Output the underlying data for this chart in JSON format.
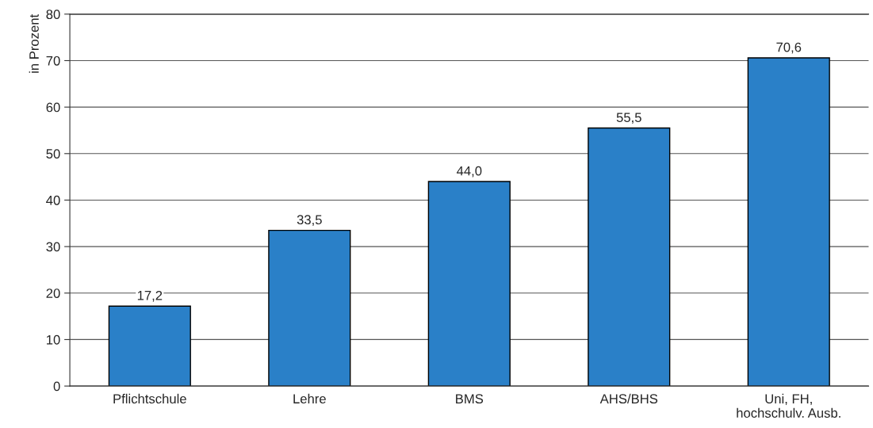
{
  "chart_data": {
    "type": "bar",
    "ylabel": "in Prozent",
    "categories": [
      "Pflichtschule",
      "Lehre",
      "BMS",
      "AHS/BHS",
      "Uni, FH,\nhochschulv. Ausb."
    ],
    "values": [
      17.2,
      33.5,
      44.0,
      55.5,
      70.6
    ],
    "value_labels": [
      "17,2",
      "33,5",
      "44,0",
      "55,5",
      "70,6"
    ],
    "color": "#2a80c8",
    "ylim": [
      0,
      80
    ],
    "yticks": [
      0,
      10,
      20,
      30,
      40,
      50,
      60,
      70,
      80
    ],
    "grid": "y"
  }
}
